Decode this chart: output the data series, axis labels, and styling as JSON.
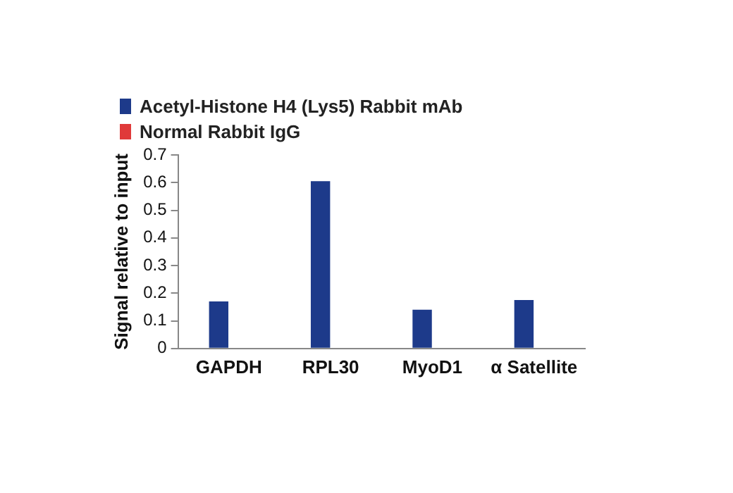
{
  "chart_data": {
    "type": "bar",
    "ylabel": "Signal relative to input",
    "categories": [
      "GAPDH",
      "RPL30",
      "MyoD1",
      "α Satellite"
    ],
    "series": [
      {
        "name": "Acetyl-Histone H4 (Lys5) Rabbit mAb",
        "color": "#1d3a8a",
        "values": [
          0.17,
          0.605,
          0.14,
          0.175
        ]
      },
      {
        "name": "Normal Rabbit IgG",
        "color": "#e03a3a",
        "values": [
          0,
          0,
          0,
          0
        ]
      }
    ],
    "ylim": [
      0,
      0.7
    ],
    "yticks": [
      0,
      0.1,
      0.2,
      0.3,
      0.4,
      0.5,
      0.6,
      0.7
    ],
    "grid": false,
    "legend": "top left"
  }
}
